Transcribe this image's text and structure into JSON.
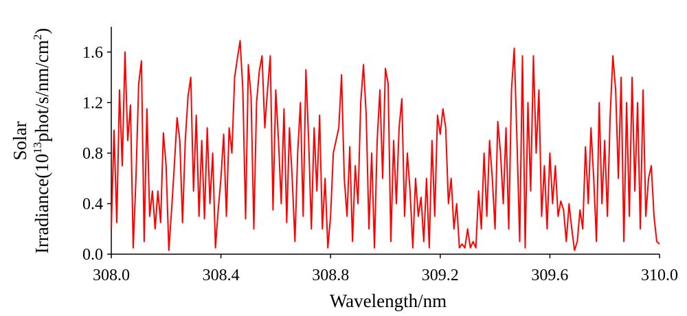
{
  "chart_data": {
    "type": "line",
    "xlabel": "Wavelength/nm",
    "ylabel": {
      "line1": "Solar",
      "parts": [
        "Irradiance(10",
        "13",
        "phot/s/nm/cm",
        "2",
        ")"
      ]
    },
    "xlim": [
      308,
      310
    ],
    "xticks": [
      {
        "value": 308,
        "label": "308.0"
      },
      308.4,
      308.8,
      309.2,
      309.6,
      {
        "value": 310,
        "label": "310.0"
      }
    ],
    "ylim": [
      0,
      1.8
    ],
    "yticks": [
      {
        "value": 0,
        "label": "0.0"
      },
      0.4,
      0.8,
      1.2,
      1.6
    ],
    "grid": false,
    "color": "#ff0000",
    "x": [
      308,
      308.01,
      308.02,
      308.03,
      308.04,
      308.05,
      308.06,
      308.07,
      308.08,
      308.09,
      308.1,
      308.11,
      308.12,
      308.13,
      308.14,
      308.15,
      308.16,
      308.17,
      308.18,
      308.19,
      308.2,
      308.21,
      308.22,
      308.23,
      308.24,
      308.25,
      308.26,
      308.27,
      308.28,
      308.29,
      308.3,
      308.31,
      308.32,
      308.33,
      308.34,
      308.35,
      308.36,
      308.37,
      308.38,
      308.39,
      308.4,
      308.41,
      308.42,
      308.43,
      308.44,
      308.45,
      308.46,
      308.47,
      308.48,
      308.49,
      308.5,
      308.51,
      308.52,
      308.53,
      308.54,
      308.55,
      308.56,
      308.57,
      308.58,
      308.59,
      308.6,
      308.61,
      308.62,
      308.63,
      308.64,
      308.65,
      308.66,
      308.67,
      308.68,
      308.69,
      308.7,
      308.71,
      308.72,
      308.73,
      308.74,
      308.75,
      308.76,
      308.77,
      308.78,
      308.79,
      308.8,
      308.81,
      308.82,
      308.83,
      308.84,
      308.85,
      308.86,
      308.87,
      308.88,
      308.89,
      308.9,
      308.91,
      308.92,
      308.93,
      308.94,
      308.95,
      308.96,
      308.97,
      308.98,
      308.99,
      309,
      309.01,
      309.02,
      309.03,
      309.04,
      309.05,
      309.06,
      309.07,
      309.08,
      309.09,
      309.1,
      309.11,
      309.12,
      309.13,
      309.14,
      309.15,
      309.16,
      309.17,
      309.18,
      309.19,
      309.2,
      309.21,
      309.22,
      309.23,
      309.24,
      309.25,
      309.26,
      309.27,
      309.28,
      309.29,
      309.3,
      309.31,
      309.32,
      309.33,
      309.34,
      309.35,
      309.36,
      309.37,
      309.38,
      309.39,
      309.4,
      309.41,
      309.42,
      309.43,
      309.44,
      309.45,
      309.46,
      309.47,
      309.48,
      309.49,
      309.5,
      309.51,
      309.52,
      309.53,
      309.54,
      309.55,
      309.56,
      309.57,
      309.58,
      309.59,
      309.6,
      309.61,
      309.62,
      309.63,
      309.64,
      309.65,
      309.66,
      309.67,
      309.68,
      309.69,
      309.7,
      309.71,
      309.72,
      309.73,
      309.74,
      309.75,
      309.76,
      309.77,
      309.78,
      309.79,
      309.8,
      309.81,
      309.82,
      309.83,
      309.84,
      309.85,
      309.86,
      309.87,
      309.88,
      309.89,
      309.9,
      309.91,
      309.92,
      309.93,
      309.94,
      309.95,
      309.96,
      309.97,
      309.98,
      309.99,
      310
    ],
    "values": [
      0.2,
      0.98,
      0.25,
      1.3,
      0.7,
      1.6,
      0.9,
      1.18,
      0.05,
      0.6,
      1.35,
      1.53,
      0.1,
      1.15,
      0.3,
      0.5,
      0.2,
      0.5,
      0.25,
      0.96,
      0.7,
      0.03,
      0.35,
      0.7,
      1.08,
      0.9,
      0.25,
      0.9,
      1.25,
      1.4,
      0.5,
      1.1,
      0.3,
      0.9,
      0.28,
      1.0,
      0.4,
      0.8,
      0.05,
      0.35,
      0.6,
      0.95,
      0.3,
      1.0,
      0.8,
      1.4,
      1.55,
      1.69,
      1.3,
      0.28,
      1.5,
      1.25,
      0.2,
      1.2,
      1.45,
      1.57,
      1.0,
      1.3,
      1.57,
      0.35,
      1.3,
      0.9,
      0.4,
      1.15,
      0.25,
      1.0,
      0.6,
      0.1,
      0.8,
      1.2,
      0.3,
      1.46,
      0.9,
      0.2,
      1.0,
      0.5,
      1.1,
      0.2,
      0.6,
      0.05,
      0.3,
      0.8,
      0.9,
      1.0,
      1.42,
      0.6,
      0.3,
      0.85,
      0.1,
      0.7,
      0.4,
      1.2,
      1.5,
      1.1,
      0.2,
      0.8,
      0.05,
      0.9,
      1.3,
      0.6,
      1.47,
      1.35,
      0.1,
      0.9,
      0.4,
      1.0,
      1.23,
      0.3,
      0.8,
      0.5,
      0.05,
      0.6,
      0.3,
      0.45,
      0.1,
      0.6,
      0.05,
      0.9,
      0.3,
      1.1,
      0.95,
      1.15,
      1.0,
      0.4,
      0.6,
      0.2,
      0.4,
      0.05,
      0.08,
      0.05,
      0.2,
      0.05,
      0.1,
      0.05,
      0.5,
      0.2,
      0.8,
      0.3,
      0.9,
      0.6,
      0.2,
      1.05,
      0.8,
      0.4,
      1.0,
      0.2,
      1.3,
      1.63,
      0.9,
      0.1,
      1.57,
      0.05,
      1.2,
      0.5,
      1.57,
      0.8,
      1.3,
      0.3,
      0.7,
      0.2,
      0.8,
      0.4,
      0.7,
      0.3,
      0.42,
      0.35,
      0.1,
      0.4,
      0.2,
      0.03,
      0.1,
      0.35,
      0.2,
      0.85,
      0.4,
      1.0,
      0.6,
      0.1,
      1.2,
      0.4,
      0.9,
      0.3,
      1.1,
      1.57,
      1.3,
      0.6,
      1.4,
      0.1,
      1.2,
      0.3,
      1.4,
      0.5,
      1.2,
      0.2,
      1.3,
      0.3,
      0.6,
      0.7,
      0.3,
      0.1,
      0.08
    ]
  }
}
